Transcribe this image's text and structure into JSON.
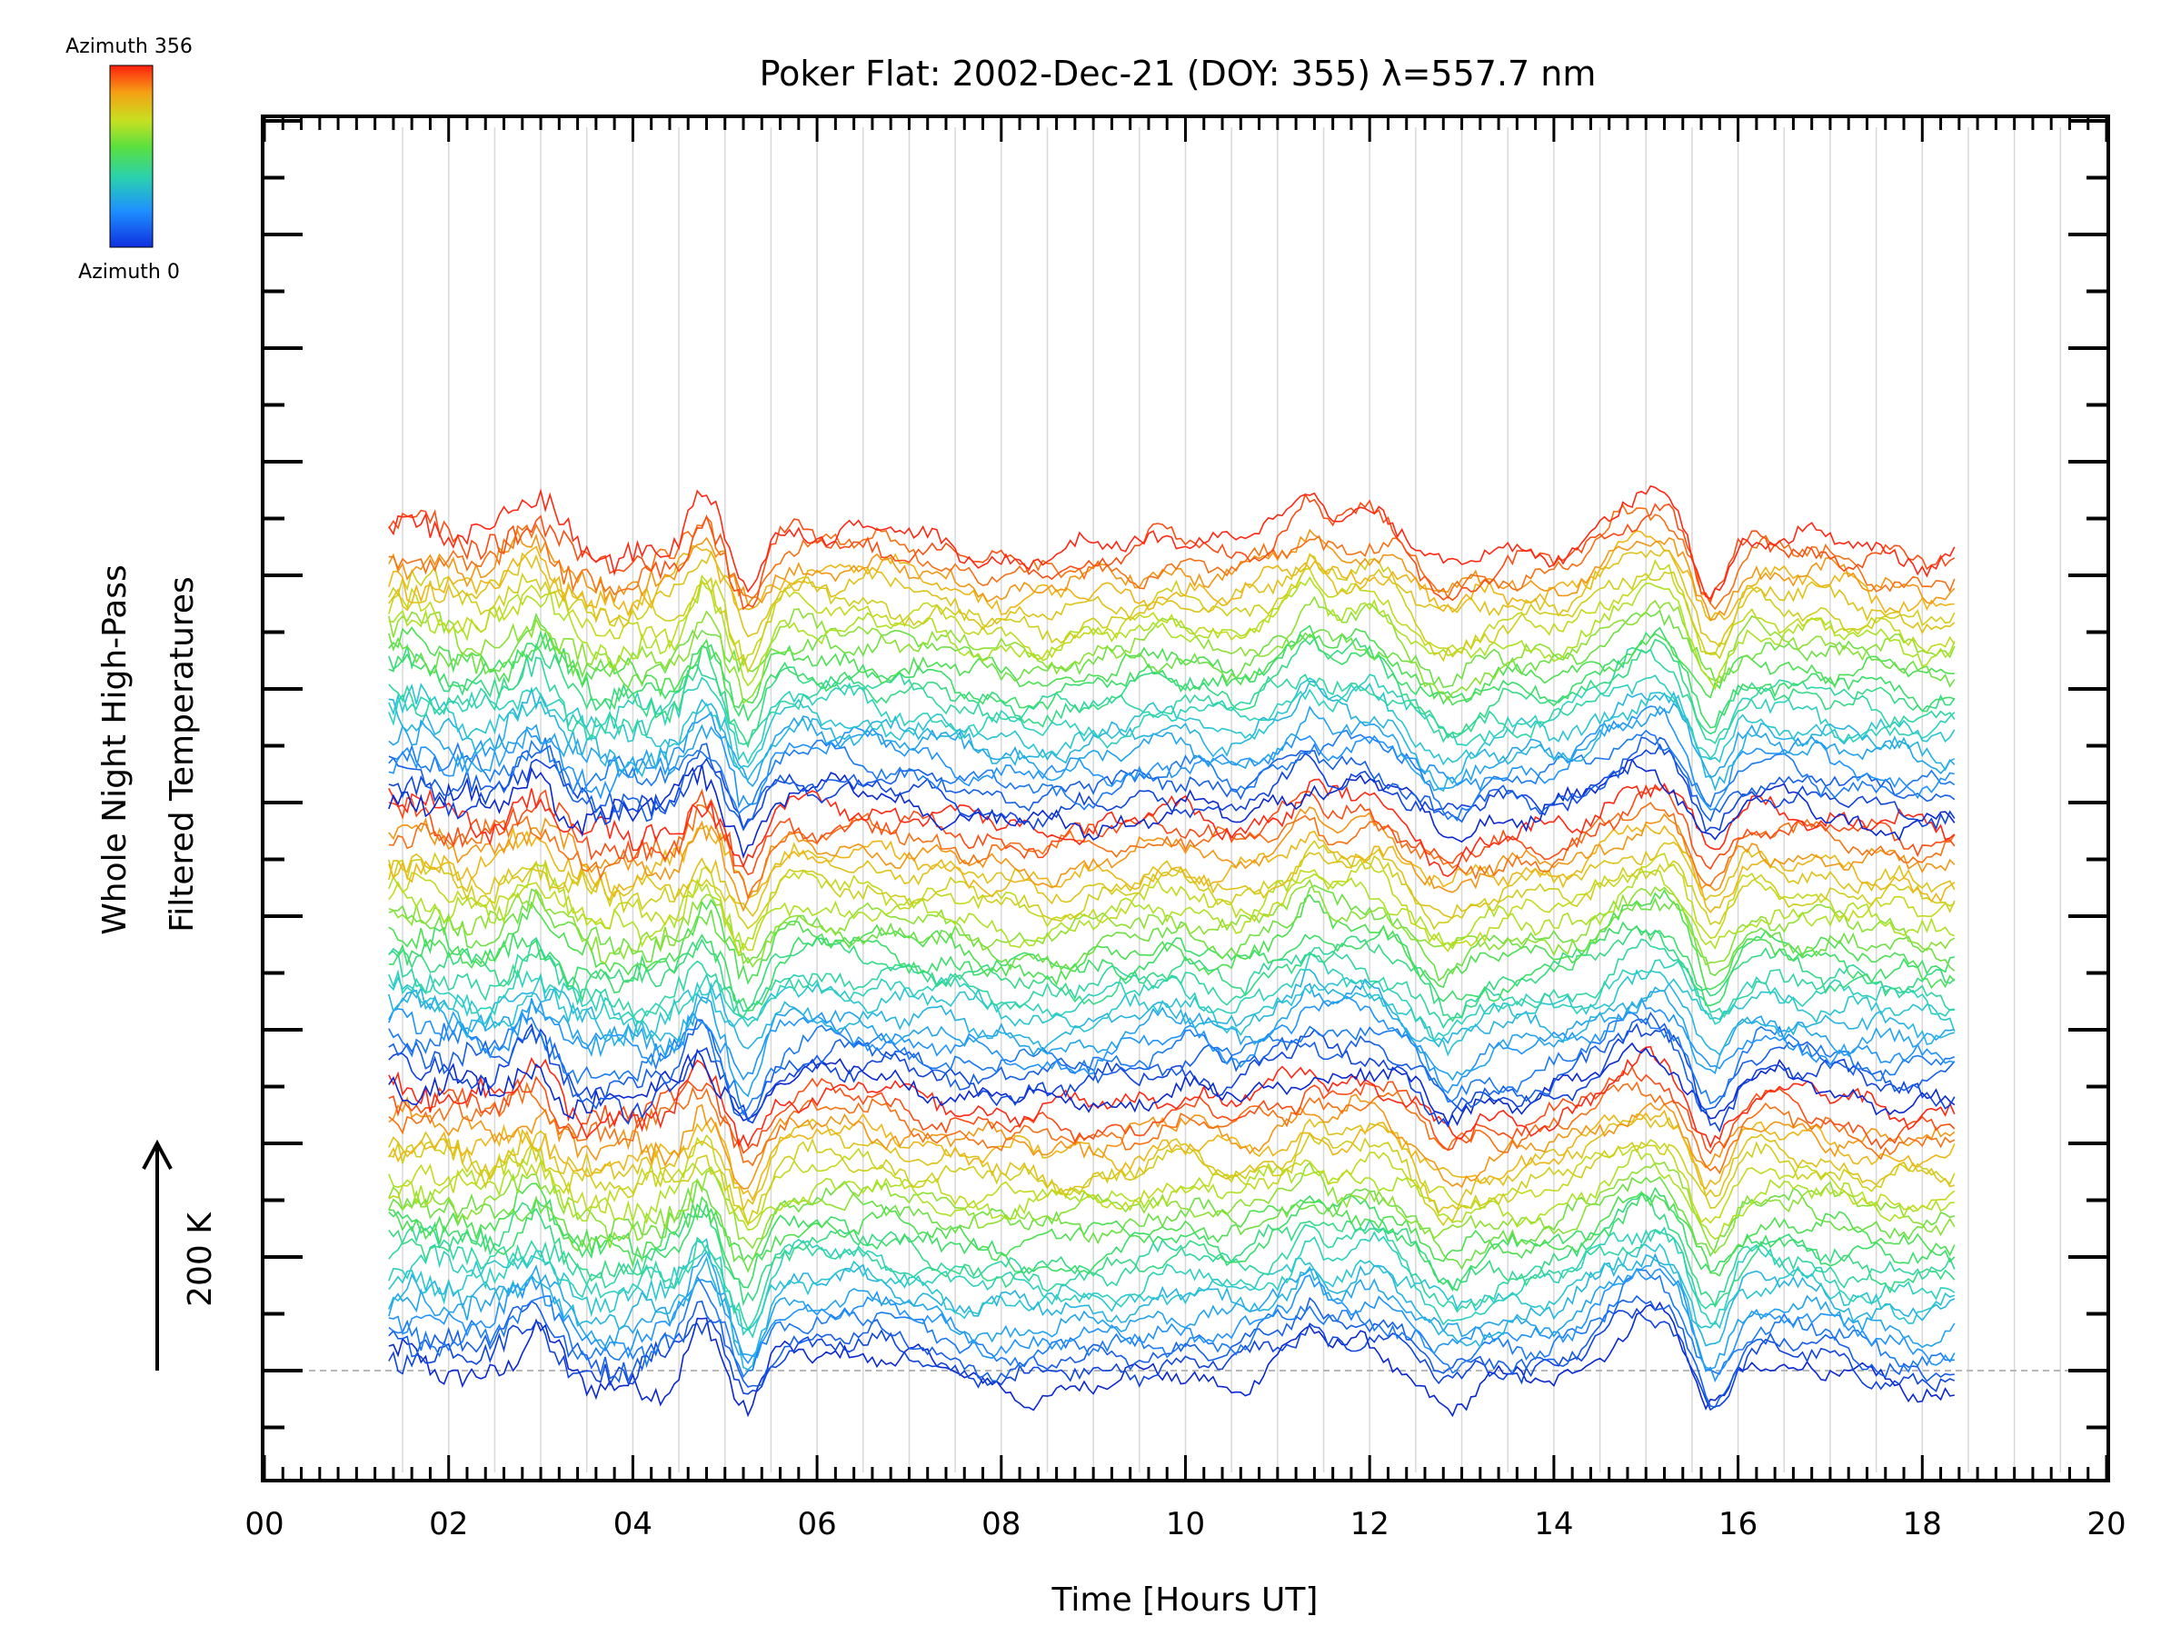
{
  "chart_data": {
    "type": "line",
    "title": "Poker Flat: 2002-Dec-21 (DOY: 355) λ=557.7 nm",
    "xlabel": "Time [Hours UT]",
    "ylabel_line1": "Whole Night High-Pass",
    "ylabel_line2": "Filtered Temperatures",
    "xlim": [
      0,
      20
    ],
    "x_tick_labels": [
      "00",
      "02",
      "04",
      "06",
      "08",
      "10",
      "12",
      "14",
      "16",
      "18",
      "20"
    ],
    "x_ticks": [
      0,
      2,
      4,
      6,
      8,
      10,
      12,
      14,
      16,
      18,
      20
    ],
    "time_range": [
      1.35,
      18.35
    ],
    "scale_bar_label": "200 K",
    "colorbar": {
      "top_label": "Azimuth 356",
      "bottom_label": "Azimuth 0",
      "colormap": "rainbow"
    },
    "series_count": 72,
    "grid": true
  },
  "colors": {
    "axis": "#000000",
    "grid": "#d8d8d8",
    "baseline": "#b8b8b8",
    "colormap_stops": [
      "#0a28d2",
      "#1e90ff",
      "#2ad0c8",
      "#3ce05a",
      "#b8e21e",
      "#f0b414",
      "#ff2814"
    ]
  }
}
